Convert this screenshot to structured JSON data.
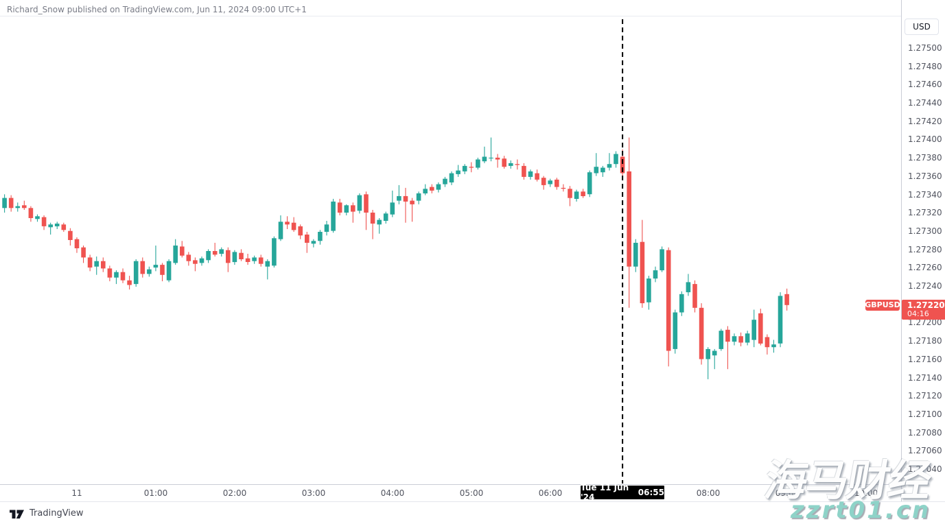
{
  "header": {
    "attribution": "Richard_Snow published on TradingView.com, Jun 11, 2024 09:00 UTC+1"
  },
  "price_axis": {
    "currency_button": "USD"
  },
  "symbol_badge": "GBPUSD",
  "price_badge": {
    "price": "1.27220",
    "countdown": "04:16"
  },
  "time_tooltip": {
    "date": "Tue 11 Jun '24",
    "time": "06:55"
  },
  "footer": {
    "brand": "TradingView"
  },
  "watermark": {
    "line1": "海马财经",
    "line2": "zzrt01.cn"
  },
  "chart_data": {
    "type": "candlestick",
    "symbol": "GBPUSD",
    "interval_minutes": 5,
    "up_color": "#26a69a",
    "down_color": "#ef5350",
    "last_price": 1.2722,
    "event_line": {
      "label_date": "Tue 11 Jun '24",
      "label_time": "06:55",
      "candle_index": 94,
      "style": "black-dashed"
    },
    "y_axis": {
      "min": 1.2704,
      "max": 1.275,
      "tick_step": 0.0002,
      "labels": [
        "1.27500",
        "1.27480",
        "1.27460",
        "1.27440",
        "1.27420",
        "1.27400",
        "1.27380",
        "1.27360",
        "1.27340",
        "1.27320",
        "1.27300",
        "1.27280",
        "1.27260",
        "1.27240",
        "1.27220",
        "1.27200",
        "1.27180",
        "1.27160",
        "1.27140",
        "1.27120",
        "1.27100",
        "1.27080",
        "1.27060",
        "1.27040"
      ]
    },
    "x_axis": {
      "ticks": [
        {
          "text": "11",
          "candle_index": 11
        },
        {
          "text": "01:00",
          "candle_index": 23
        },
        {
          "text": "02:00",
          "candle_index": 35
        },
        {
          "text": "03:00",
          "candle_index": 47
        },
        {
          "text": "04:00",
          "candle_index": 59
        },
        {
          "text": "05:00",
          "candle_index": 71
        },
        {
          "text": "06:00",
          "candle_index": 83
        },
        {
          "text": "08:00",
          "candle_index": 107
        },
        {
          "text": "09:00",
          "candle_index": 119
        },
        {
          "text": "10:00",
          "candle_index": 131
        }
      ]
    },
    "candles": [
      [
        "23:05",
        1.27326,
        1.27341,
        1.27321,
        1.27337
      ],
      [
        "23:10",
        1.27337,
        1.2734,
        1.27322,
        1.27326
      ],
      [
        "23:15",
        1.27326,
        1.27332,
        1.27322,
        1.27328
      ],
      [
        "23:20",
        1.27329,
        1.27334,
        1.27324,
        1.27326
      ],
      [
        "23:25",
        1.27326,
        1.27328,
        1.27311,
        1.27315
      ],
      [
        "23:30",
        1.27314,
        1.27319,
        1.27311,
        1.27317
      ],
      [
        "23:35",
        1.27316,
        1.27318,
        1.27302,
        1.27306
      ],
      [
        "23:40",
        1.27305,
        1.2731,
        1.27297,
        1.27308
      ],
      [
        "23:45",
        1.27306,
        1.27311,
        1.27303,
        1.27309
      ],
      [
        "23:50",
        1.27308,
        1.2731,
        1.273,
        1.27302
      ],
      [
        "23:55",
        1.27301,
        1.27304,
        1.27285,
        1.27291
      ],
      [
        "00:00",
        1.27292,
        1.27294,
        1.27277,
        1.27282
      ],
      [
        "00:05",
        1.27283,
        1.27285,
        1.27266,
        1.27272
      ],
      [
        "00:10",
        1.27272,
        1.27275,
        1.27257,
        1.27261
      ],
      [
        "00:15",
        1.27262,
        1.27273,
        1.27253,
        1.27268
      ],
      [
        "00:20",
        1.27268,
        1.27272,
        1.27256,
        1.2726
      ],
      [
        "00:25",
        1.2726,
        1.27263,
        1.27246,
        1.2725
      ],
      [
        "00:30",
        1.2725,
        1.27258,
        1.27243,
        1.27256
      ],
      [
        "00:35",
        1.27256,
        1.2726,
        1.27244,
        1.27247
      ],
      [
        "00:40",
        1.27247,
        1.27252,
        1.27237,
        1.27242
      ],
      [
        "00:45",
        1.27243,
        1.2727,
        1.2724,
        1.27268
      ],
      [
        "00:50",
        1.27268,
        1.27272,
        1.2725,
        1.27254
      ],
      [
        "00:55",
        1.27254,
        1.27262,
        1.27251,
        1.27259
      ],
      [
        "01:00",
        1.27261,
        1.27285,
        1.27257,
        1.27264
      ],
      [
        "01:05",
        1.27264,
        1.27266,
        1.27246,
        1.27253
      ],
      [
        "01:10",
        1.27247,
        1.2727,
        1.27245,
        1.27268
      ],
      [
        "01:15",
        1.27266,
        1.27292,
        1.27264,
        1.27285
      ],
      [
        "01:20",
        1.27284,
        1.2729,
        1.27272,
        1.27274
      ],
      [
        "01:25",
        1.27275,
        1.27278,
        1.27263,
        1.27268
      ],
      [
        "01:30",
        1.27269,
        1.27272,
        1.27257,
        1.27265
      ],
      [
        "01:35",
        1.27266,
        1.27273,
        1.27263,
        1.27271
      ],
      [
        "01:40",
        1.27269,
        1.27281,
        1.27266,
        1.27279
      ],
      [
        "01:45",
        1.27279,
        1.27288,
        1.27273,
        1.27275
      ],
      [
        "01:50",
        1.27276,
        1.27283,
        1.27273,
        1.27281
      ],
      [
        "01:55",
        1.2728,
        1.27283,
        1.27256,
        1.27266
      ],
      [
        "02:00",
        1.27267,
        1.2728,
        1.27264,
        1.27278
      ],
      [
        "02:05",
        1.27277,
        1.27281,
        1.27268,
        1.2727
      ],
      [
        "02:10",
        1.27271,
        1.27276,
        1.27264,
        1.27267
      ],
      [
        "02:15",
        1.27268,
        1.27274,
        1.27265,
        1.27272
      ],
      [
        "02:20",
        1.27272,
        1.27275,
        1.27262,
        1.27265
      ],
      [
        "02:25",
        1.27262,
        1.2727,
        1.27248,
        1.27268
      ],
      [
        "02:30",
        1.27263,
        1.27295,
        1.27261,
        1.27293
      ],
      [
        "02:35",
        1.27292,
        1.27318,
        1.2729,
        1.27311
      ],
      [
        "02:40",
        1.27311,
        1.27317,
        1.27303,
        1.27308
      ],
      [
        "02:45",
        1.2731,
        1.27316,
        1.273,
        1.27302
      ],
      [
        "02:50",
        1.27306,
        1.27308,
        1.27292,
        1.27296
      ],
      [
        "02:55",
        1.27297,
        1.273,
        1.27277,
        1.27288
      ],
      [
        "03:00",
        1.27287,
        1.27292,
        1.27283,
        1.2729
      ],
      [
        "03:05",
        1.2729,
        1.27302,
        1.27286,
        1.273
      ],
      [
        "03:10",
        1.273,
        1.27312,
        1.27296,
        1.27308
      ],
      [
        "03:15",
        1.27301,
        1.27336,
        1.27299,
        1.27333
      ],
      [
        "03:20",
        1.27332,
        1.27336,
        1.27318,
        1.27321
      ],
      [
        "03:25",
        1.27321,
        1.2733,
        1.27318,
        1.27329
      ],
      [
        "03:30",
        1.27329,
        1.27332,
        1.2731,
        1.27322
      ],
      [
        "03:35",
        1.27323,
        1.27342,
        1.2732,
        1.2734
      ],
      [
        "03:40",
        1.27341,
        1.27344,
        1.27302,
        1.27321
      ],
      [
        "03:45",
        1.27321,
        1.27324,
        1.27292,
        1.27309
      ],
      [
        "03:50",
        1.27308,
        1.27315,
        1.27298,
        1.27313
      ],
      [
        "03:55",
        1.27312,
        1.27322,
        1.27309,
        1.2732
      ],
      [
        "04:00",
        1.27319,
        1.27345,
        1.27316,
        1.27332
      ],
      [
        "04:05",
        1.27334,
        1.27351,
        1.2733,
        1.27339
      ],
      [
        "04:10",
        1.27339,
        1.27348,
        1.2731,
        1.27333
      ],
      [
        "04:15",
        1.27334,
        1.27337,
        1.27311,
        1.2733
      ],
      [
        "04:20",
        1.27334,
        1.27344,
        1.2733,
        1.27342
      ],
      [
        "04:25",
        1.27342,
        1.27352,
        1.2734,
        1.27347
      ],
      [
        "04:30",
        1.27349,
        1.27352,
        1.27342,
        1.27345
      ],
      [
        "04:35",
        1.27346,
        1.27354,
        1.27343,
        1.27352
      ],
      [
        "04:40",
        1.27352,
        1.2736,
        1.27349,
        1.27358
      ],
      [
        "04:45",
        1.27354,
        1.27366,
        1.27351,
        1.27364
      ],
      [
        "04:50",
        1.27363,
        1.27373,
        1.2736,
        1.27367
      ],
      [
        "04:55",
        1.27366,
        1.27374,
        1.27363,
        1.27372
      ],
      [
        "05:00",
        1.27371,
        1.27376,
        1.27365,
        1.2737
      ],
      [
        "05:05",
        1.2737,
        1.27381,
        1.27368,
        1.27379
      ],
      [
        "05:10",
        1.27377,
        1.27393,
        1.27375,
        1.27382
      ],
      [
        "05:15",
        1.27381,
        1.27403,
        1.27377,
        1.27381
      ],
      [
        "05:20",
        1.27381,
        1.27385,
        1.2737,
        1.27379
      ],
      [
        "05:25",
        1.2738,
        1.27383,
        1.27369,
        1.27371
      ],
      [
        "05:30",
        1.27372,
        1.27378,
        1.27369,
        1.27375
      ],
      [
        "05:35",
        1.27374,
        1.27379,
        1.27368,
        1.27373
      ],
      [
        "05:40",
        1.27372,
        1.27375,
        1.27357,
        1.2736
      ],
      [
        "05:45",
        1.2736,
        1.27368,
        1.27357,
        1.27366
      ],
      [
        "05:50",
        1.27364,
        1.27368,
        1.27355,
        1.27357
      ],
      [
        "05:55",
        1.27359,
        1.27361,
        1.27346,
        1.27351
      ],
      [
        "06:00",
        1.27352,
        1.27358,
        1.27349,
        1.27356
      ],
      [
        "06:05",
        1.27357,
        1.27359,
        1.27346,
        1.27349
      ],
      [
        "06:10",
        1.27348,
        1.27352,
        1.27344,
        1.27347
      ],
      [
        "06:15",
        1.27347,
        1.2735,
        1.27328,
        1.27337
      ],
      [
        "06:20",
        1.27336,
        1.27346,
        1.27333,
        1.27344
      ],
      [
        "06:25",
        1.27344,
        1.27347,
        1.27337,
        1.27339
      ],
      [
        "06:30",
        1.27341,
        1.27367,
        1.27338,
        1.27365
      ],
      [
        "06:35",
        1.27364,
        1.27386,
        1.27361,
        1.27371
      ],
      [
        "06:40",
        1.27365,
        1.27372,
        1.2736,
        1.2737
      ],
      [
        "06:45",
        1.2737,
        1.27386,
        1.27367,
        1.27374
      ],
      [
        "06:50",
        1.27374,
        1.27388,
        1.2737,
        1.27385
      ],
      [
        "06:55",
        1.27382,
        1.2739,
        1.2736,
        1.27364
      ],
      [
        "07:00",
        1.27366,
        1.27403,
        1.27217,
        1.27262
      ],
      [
        "07:05",
        1.27262,
        1.27292,
        1.27256,
        1.27288
      ],
      [
        "07:10",
        1.27289,
        1.27313,
        1.27217,
        1.27222
      ],
      [
        "07:15",
        1.27223,
        1.27252,
        1.27215,
        1.27249
      ],
      [
        "07:20",
        1.27249,
        1.27262,
        1.27245,
        1.27258
      ],
      [
        "07:25",
        1.27258,
        1.27284,
        1.27256,
        1.27281
      ],
      [
        "07:30",
        1.2728,
        1.27283,
        1.27153,
        1.2717
      ],
      [
        "07:35",
        1.27172,
        1.27215,
        1.27167,
        1.27212
      ],
      [
        "07:40",
        1.27212,
        1.27235,
        1.27208,
        1.27232
      ],
      [
        "07:45",
        1.27234,
        1.27254,
        1.2723,
        1.27245
      ],
      [
        "07:50",
        1.27243,
        1.27247,
        1.27212,
        1.27217
      ],
      [
        "07:55",
        1.27217,
        1.27222,
        1.27155,
        1.27161
      ],
      [
        "08:00",
        1.27161,
        1.27174,
        1.27139,
        1.27172
      ],
      [
        "08:05",
        1.27165,
        1.27172,
        1.2715,
        1.2717
      ],
      [
        "08:10",
        1.27172,
        1.27194,
        1.2717,
        1.27192
      ],
      [
        "08:15",
        1.27193,
        1.27197,
        1.2715,
        1.2718
      ],
      [
        "08:20",
        1.2718,
        1.27189,
        1.27176,
        1.27186
      ],
      [
        "08:25",
        1.27186,
        1.2719,
        1.27175,
        1.27179
      ],
      [
        "08:30",
        1.27179,
        1.27192,
        1.27176,
        1.27189
      ],
      [
        "08:35",
        1.27182,
        1.27215,
        1.27174,
        1.27204
      ],
      [
        "08:40",
        1.27211,
        1.27216,
        1.27176,
        1.27178
      ],
      [
        "08:45",
        1.27185,
        1.27188,
        1.27166,
        1.27174
      ],
      [
        "08:50",
        1.27174,
        1.27182,
        1.27168,
        1.27177
      ],
      [
        "08:55",
        1.27178,
        1.27234,
        1.27174,
        1.2723
      ],
      [
        "09:00",
        1.27232,
        1.27238,
        1.27214,
        1.2722
      ]
    ]
  }
}
